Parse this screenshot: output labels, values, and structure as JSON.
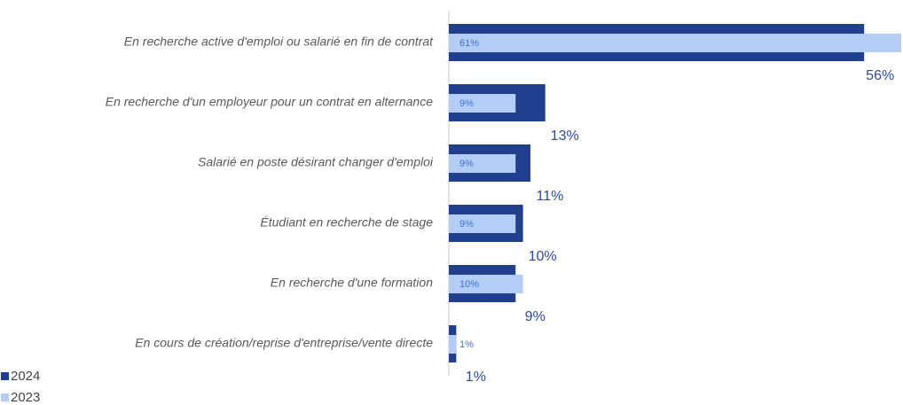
{
  "chart_data": {
    "type": "bar",
    "orientation": "horizontal",
    "categories": [
      "En recherche active d'emploi ou salarié en fin de contrat",
      "En recherche d'un employeur pour un contrat en alternance",
      "Salarié en poste désirant changer d'emploi",
      "Étudiant en recherche de stage",
      "En recherche d'une formation",
      "En cours de création/reprise d'entreprise/vente directe"
    ],
    "series": [
      {
        "name": "2024",
        "color": "#203f8f",
        "values": [
          56,
          13,
          11,
          10,
          9,
          1
        ],
        "value_labels": [
          "56%",
          "13%",
          "11%",
          "10%",
          "9%",
          "1%"
        ]
      },
      {
        "name": "2023",
        "color": "#b4cdf6",
        "values": [
          61,
          9,
          9,
          9,
          10,
          1
        ],
        "value_labels": [
          "61%",
          "9%",
          "9%",
          "9%",
          "10%",
          "1%"
        ]
      }
    ],
    "legend": "bottom-left"
  }
}
